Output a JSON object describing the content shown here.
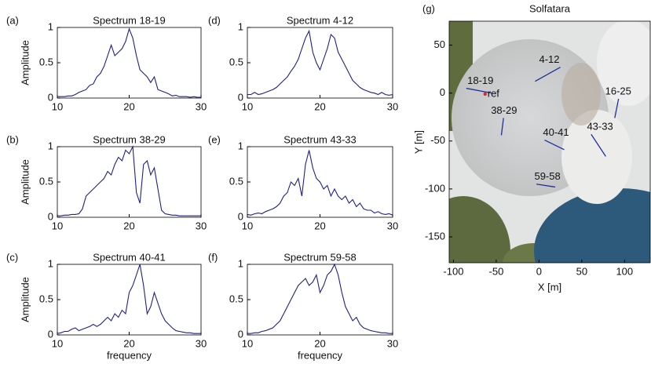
{
  "chart_data": [
    {
      "type": "line",
      "panel": "(a)",
      "title": "Spectrum 18-19",
      "ylabel": "Amplitude",
      "color": "#1f1f8f",
      "xlim": [
        10,
        30
      ],
      "ylim": [
        0,
        1
      ],
      "xticks": [
        10,
        20,
        30
      ],
      "yticks": [
        0,
        0.5,
        1
      ],
      "x": [
        10,
        10.5,
        11,
        11.5,
        12,
        12.5,
        13,
        13.5,
        14,
        14.5,
        15,
        15.5,
        16,
        16.5,
        17,
        17.5,
        18,
        18.5,
        19,
        19.5,
        20,
        20.5,
        21,
        21.5,
        22,
        22.5,
        23,
        23.5,
        24,
        24.5,
        25,
        25.5,
        26,
        26.5,
        27,
        27.5,
        28,
        28.5,
        29,
        29.5,
        30
      ],
      "values": [
        0.02,
        0.02,
        0.02,
        0.03,
        0.03,
        0.05,
        0.08,
        0.1,
        0.12,
        0.18,
        0.2,
        0.3,
        0.35,
        0.45,
        0.6,
        0.75,
        0.6,
        0.65,
        0.7,
        0.8,
        0.98,
        0.85,
        0.6,
        0.4,
        0.35,
        0.3,
        0.22,
        0.3,
        0.12,
        0.1,
        0.08,
        0.06,
        0.03,
        0.04,
        0.02,
        0.02,
        0.02,
        0.01,
        0.02,
        0.01,
        0.01
      ]
    },
    {
      "type": "line",
      "panel": "(b)",
      "title": "Spectrum 38-29",
      "ylabel": "Amplitude",
      "color": "#1f1f8f",
      "xlim": [
        10,
        30
      ],
      "ylim": [
        0,
        1
      ],
      "xticks": [
        10,
        20,
        30
      ],
      "yticks": [
        0,
        0.5,
        1
      ],
      "x": [
        10,
        10.5,
        11,
        11.5,
        12,
        12.5,
        13,
        13.5,
        14,
        14.5,
        15,
        15.5,
        16,
        16.5,
        17,
        17.5,
        18,
        18.5,
        19,
        19.5,
        20,
        20.5,
        21,
        21.5,
        22,
        22.5,
        23,
        23.5,
        24,
        24.5,
        25,
        25.5,
        26,
        26.5,
        27,
        27.5,
        28,
        28.5,
        29,
        29.5,
        30
      ],
      "values": [
        0.02,
        0.02,
        0.03,
        0.03,
        0.04,
        0.04,
        0.05,
        0.12,
        0.3,
        0.35,
        0.4,
        0.45,
        0.5,
        0.55,
        0.65,
        0.6,
        0.75,
        0.85,
        0.8,
        0.95,
        0.9,
        1.0,
        0.35,
        0.2,
        0.75,
        0.8,
        0.6,
        0.7,
        0.4,
        0.1,
        0.05,
        0.04,
        0.03,
        0.03,
        0.02,
        0.02,
        0.02,
        0.02,
        0.02,
        0.02,
        0.02
      ]
    },
    {
      "type": "line",
      "panel": "(c)",
      "title": "Spectrum 40-41",
      "ylabel": "Amplitude",
      "xlabel": "frequency",
      "color": "#1f1f8f",
      "xlim": [
        10,
        30
      ],
      "ylim": [
        0,
        1
      ],
      "xticks": [
        10,
        20,
        30
      ],
      "yticks": [
        0,
        0.5,
        1
      ],
      "x": [
        10,
        10.5,
        11,
        11.5,
        12,
        12.5,
        13,
        13.5,
        14,
        14.5,
        15,
        15.5,
        16,
        16.5,
        17,
        17.5,
        18,
        18.5,
        19,
        19.5,
        20,
        20.5,
        21,
        21.5,
        22,
        22.5,
        23,
        23.5,
        24,
        24.5,
        25,
        25.5,
        26,
        26.5,
        27,
        27.5,
        28,
        28.5,
        29,
        29.5,
        30
      ],
      "values": [
        0.02,
        0.03,
        0.05,
        0.05,
        0.08,
        0.1,
        0.06,
        0.08,
        0.1,
        0.12,
        0.15,
        0.12,
        0.15,
        0.2,
        0.25,
        0.2,
        0.3,
        0.25,
        0.35,
        0.3,
        0.6,
        0.7,
        0.85,
        1.0,
        0.7,
        0.3,
        0.4,
        0.6,
        0.45,
        0.3,
        0.2,
        0.15,
        0.1,
        0.06,
        0.05,
        0.04,
        0.03,
        0.03,
        0.02,
        0.02,
        0.02
      ]
    },
    {
      "type": "line",
      "panel": "(d)",
      "title": "Spectrum 4-12",
      "color": "#1f1f8f",
      "xlim": [
        10,
        30
      ],
      "ylim": [
        0,
        1
      ],
      "xticks": [
        10,
        20,
        30
      ],
      "yticks": [
        0,
        0.5,
        1
      ],
      "x": [
        10,
        10.5,
        11,
        11.5,
        12,
        12.5,
        13,
        13.5,
        14,
        14.5,
        15,
        15.5,
        16,
        16.5,
        17,
        17.5,
        18,
        18.5,
        19,
        19.5,
        20,
        20.5,
        21,
        21.5,
        22,
        22.5,
        23,
        23.5,
        24,
        24.5,
        25,
        25.5,
        26,
        26.5,
        27,
        27.5,
        28,
        28.5,
        29,
        29.5,
        30
      ],
      "values": [
        0.05,
        0.05,
        0.08,
        0.05,
        0.06,
        0.08,
        0.1,
        0.12,
        0.15,
        0.2,
        0.25,
        0.3,
        0.38,
        0.45,
        0.55,
        0.7,
        0.85,
        0.95,
        0.65,
        0.5,
        0.4,
        0.55,
        0.7,
        0.9,
        0.85,
        0.65,
        0.55,
        0.45,
        0.35,
        0.25,
        0.2,
        0.15,
        0.12,
        0.1,
        0.08,
        0.07,
        0.05,
        0.08,
        0.05,
        0.04,
        0.05
      ]
    },
    {
      "type": "line",
      "panel": "(e)",
      "title": "Spectrum 43-33",
      "color": "#1f1f8f",
      "xlim": [
        10,
        30
      ],
      "ylim": [
        0,
        1
      ],
      "xticks": [
        10,
        20,
        30
      ],
      "yticks": [
        0,
        0.5,
        1
      ],
      "x": [
        10,
        10.5,
        11,
        11.5,
        12,
        12.5,
        13,
        13.5,
        14,
        14.5,
        15,
        15.5,
        16,
        16.5,
        17,
        17.5,
        18,
        18.5,
        19,
        19.5,
        20,
        20.5,
        21,
        21.5,
        22,
        22.5,
        23,
        23.5,
        24,
        24.5,
        25,
        25.5,
        26,
        26.5,
        27,
        27.5,
        28,
        28.5,
        29,
        29.5,
        30
      ],
      "values": [
        0.04,
        0.03,
        0.05,
        0.06,
        0.05,
        0.08,
        0.1,
        0.12,
        0.15,
        0.2,
        0.3,
        0.35,
        0.5,
        0.45,
        0.55,
        0.3,
        0.75,
        0.95,
        0.7,
        0.55,
        0.5,
        0.4,
        0.45,
        0.3,
        0.4,
        0.3,
        0.25,
        0.3,
        0.2,
        0.25,
        0.15,
        0.2,
        0.12,
        0.1,
        0.1,
        0.06,
        0.08,
        0.05,
        0.04,
        0.05,
        0.03
      ]
    },
    {
      "type": "line",
      "panel": "(f)",
      "title": "Spectrum 59-58",
      "xlabel": "frequency",
      "color": "#1f1f8f",
      "xlim": [
        10,
        30
      ],
      "ylim": [
        0,
        1
      ],
      "xticks": [
        10,
        20,
        30
      ],
      "yticks": [
        0,
        0.5,
        1
      ],
      "x": [
        10,
        10.5,
        11,
        11.5,
        12,
        12.5,
        13,
        13.5,
        14,
        14.5,
        15,
        15.5,
        16,
        16.5,
        17,
        17.5,
        18,
        18.5,
        19,
        19.5,
        20,
        20.5,
        21,
        21.5,
        22,
        22.5,
        23,
        23.5,
        24,
        24.5,
        25,
        25.5,
        26,
        26.5,
        27,
        27.5,
        28,
        28.5,
        29,
        29.5,
        30
      ],
      "values": [
        0.02,
        0.02,
        0.03,
        0.03,
        0.05,
        0.06,
        0.08,
        0.1,
        0.15,
        0.2,
        0.3,
        0.4,
        0.5,
        0.6,
        0.7,
        0.75,
        0.8,
        0.7,
        0.75,
        0.85,
        0.6,
        0.7,
        0.85,
        0.9,
        1.0,
        0.85,
        0.6,
        0.4,
        0.3,
        0.2,
        0.25,
        0.15,
        0.1,
        0.08,
        0.06,
        0.05,
        0.04,
        0.03,
        0.03,
        0.02,
        0.02
      ]
    },
    {
      "type": "map",
      "panel": "(g)",
      "title": "Solfatara",
      "xlabel": "X [m]",
      "ylabel": "Y [m]",
      "color": "#1f2f9f",
      "xlim": [
        -105,
        130
      ],
      "ylim": [
        -177,
        75
      ],
      "xticks": [
        -100,
        -50,
        0,
        50,
        100
      ],
      "yticks": [
        -150,
        -100,
        -50,
        0,
        50
      ],
      "segments": [
        {
          "label": "4-12",
          "x": [
            -4.6,
            25
          ],
          "y": [
            12.3,
            27
          ]
        },
        {
          "label": "18-19",
          "x": [
            -85,
            -55.7
          ],
          "y": [
            5,
            0
          ]
        },
        {
          "label": "16-25",
          "x": [
            93,
            88.5
          ],
          "y": [
            -6,
            -26
          ]
        },
        {
          "label": "38-29",
          "x": [
            -41.5,
            -44
          ],
          "y": [
            -26,
            -44
          ]
        },
        {
          "label": "40-41",
          "x": [
            6.5,
            29.5
          ],
          "y": [
            -49,
            -59
          ]
        },
        {
          "label": "43-33",
          "x": [
            61,
            78
          ],
          "y": [
            -43,
            -66
          ]
        },
        {
          "label": "59-58",
          "x": [
            -3,
            19
          ],
          "y": [
            -95,
            -98
          ]
        }
      ],
      "ref": {
        "label": "ref",
        "x": -63,
        "y": -1
      }
    }
  ]
}
